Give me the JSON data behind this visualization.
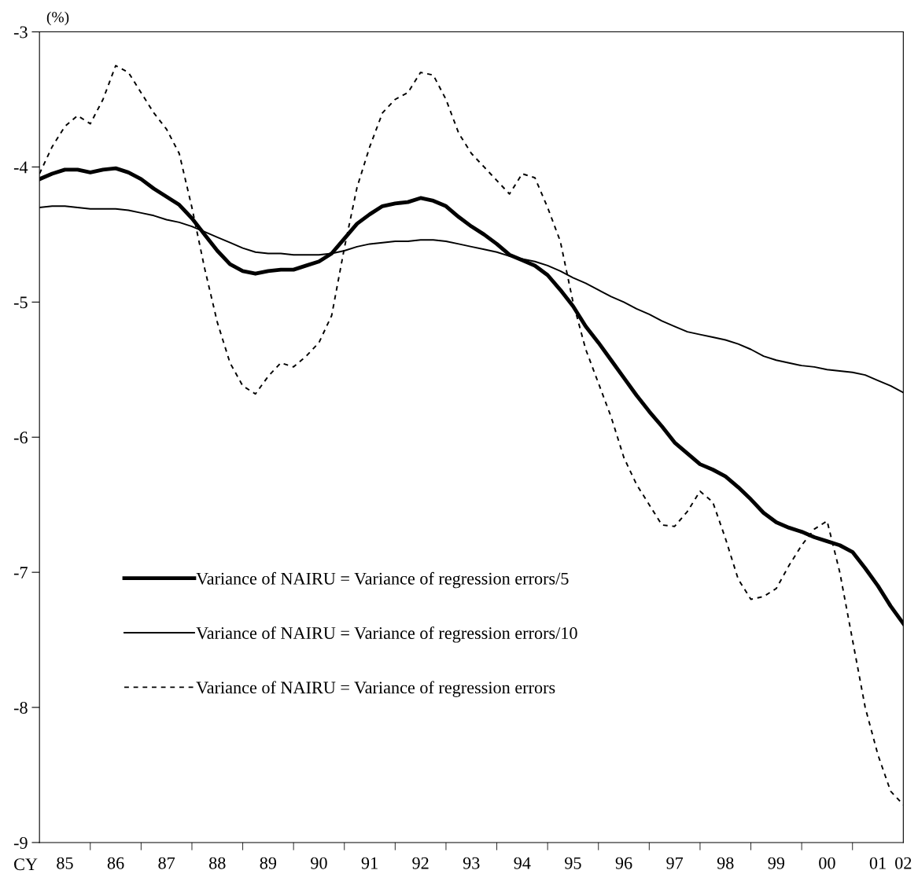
{
  "chart_data": {
    "type": "line",
    "ylabel": "(%)",
    "xlabel": "CY",
    "categories": [
      null,
      null,
      "85",
      null,
      null,
      null,
      "86",
      null,
      null,
      null,
      "87",
      null,
      null,
      null,
      "88",
      null,
      null,
      null,
      "89",
      null,
      null,
      null,
      "90",
      null,
      null,
      null,
      "91",
      null,
      null,
      null,
      "92",
      null,
      null,
      null,
      "93",
      null,
      null,
      null,
      "94",
      null,
      null,
      null,
      "95",
      null,
      null,
      null,
      "96",
      null,
      null,
      null,
      "97",
      null,
      null,
      null,
      "98",
      null,
      null,
      null,
      "99",
      null,
      null,
      null,
      "00",
      null,
      null,
      null,
      "01",
      null,
      "02"
    ],
    "series": [
      {
        "name": "Variance of NAIRU = Variance of regression errors/5",
        "color": "#000000",
        "line_style": "solid",
        "values": [
          -4.09,
          -4.05,
          -4.02,
          -4.02,
          -4.04,
          -4.02,
          -4.01,
          -4.04,
          -4.09,
          -4.16,
          -4.22,
          -4.28,
          -4.38,
          -4.5,
          -4.62,
          -4.72,
          -4.77,
          -4.79,
          -4.77,
          -4.76,
          -4.76,
          -4.73,
          -4.7,
          -4.64,
          -4.53,
          -4.42,
          -4.35,
          -4.29,
          -4.27,
          -4.26,
          -4.23,
          -4.25,
          -4.29,
          -4.37,
          -4.44,
          -4.5,
          -4.57,
          -4.65,
          -4.69,
          -4.73,
          -4.8,
          -4.91,
          -5.03,
          -5.18,
          -5.3,
          -5.43,
          -5.56,
          -5.69,
          -5.81,
          -5.92,
          -6.04,
          -6.12,
          -6.2,
          -6.24,
          -6.29,
          -6.37,
          -6.46,
          -6.56,
          -6.63,
          -6.67,
          -6.7,
          -6.74,
          -6.77,
          -6.8,
          -6.85,
          -6.97,
          -7.1,
          -7.25,
          -7.38
        ]
      },
      {
        "name": "Variance of NAIRU = Variance of regression errors/10",
        "color": "#000000",
        "line_style": "solid",
        "values": [
          -4.3,
          -4.29,
          -4.29,
          -4.3,
          -4.31,
          -4.31,
          -4.31,
          -4.32,
          -4.34,
          -4.36,
          -4.39,
          -4.41,
          -4.44,
          -4.48,
          -4.52,
          -4.56,
          -4.6,
          -4.63,
          -4.64,
          -4.64,
          -4.65,
          -4.65,
          -4.65,
          -4.64,
          -4.62,
          -4.59,
          -4.57,
          -4.56,
          -4.55,
          -4.55,
          -4.54,
          -4.54,
          -4.55,
          -4.57,
          -4.59,
          -4.61,
          -4.63,
          -4.66,
          -4.68,
          -4.7,
          -4.73,
          -4.77,
          -4.82,
          -4.86,
          -4.91,
          -4.96,
          -5.0,
          -5.05,
          -5.09,
          -5.14,
          -5.18,
          -5.22,
          -5.24,
          -5.26,
          -5.28,
          -5.31,
          -5.35,
          -5.4,
          -5.43,
          -5.45,
          -5.47,
          -5.48,
          -5.5,
          -5.51,
          -5.52,
          -5.54,
          -5.58,
          -5.62,
          -5.67
        ]
      },
      {
        "name": "Variance of NAIRU = Variance of regression errors",
        "color": "#000000",
        "line_style": "dashed",
        "values": [
          -4.05,
          -3.85,
          -3.7,
          -3.62,
          -3.68,
          -3.5,
          -3.25,
          -3.3,
          -3.45,
          -3.6,
          -3.72,
          -3.9,
          -4.3,
          -4.75,
          -5.15,
          -5.45,
          -5.62,
          -5.68,
          -5.55,
          -5.45,
          -5.48,
          -5.4,
          -5.3,
          -5.1,
          -4.6,
          -4.15,
          -3.85,
          -3.6,
          -3.5,
          -3.45,
          -3.3,
          -3.32,
          -3.5,
          -3.75,
          -3.9,
          -4.0,
          -4.1,
          -4.2,
          -4.05,
          -4.08,
          -4.3,
          -4.55,
          -5.0,
          -5.35,
          -5.6,
          -5.85,
          -6.15,
          -6.35,
          -6.5,
          -6.65,
          -6.66,
          -6.55,
          -6.4,
          -6.48,
          -6.75,
          -7.05,
          -7.2,
          -7.18,
          -7.12,
          -6.95,
          -6.8,
          -6.68,
          -6.62,
          -7.0,
          -7.5,
          -8.0,
          -8.35,
          -8.62,
          -8.72
        ]
      }
    ],
    "ylim": [
      -9,
      -3
    ],
    "yticks": [
      -9,
      -8,
      -7,
      -6,
      -5,
      -4,
      -3
    ],
    "grid": false,
    "legend": "bottom left",
    "marker": "none"
  }
}
